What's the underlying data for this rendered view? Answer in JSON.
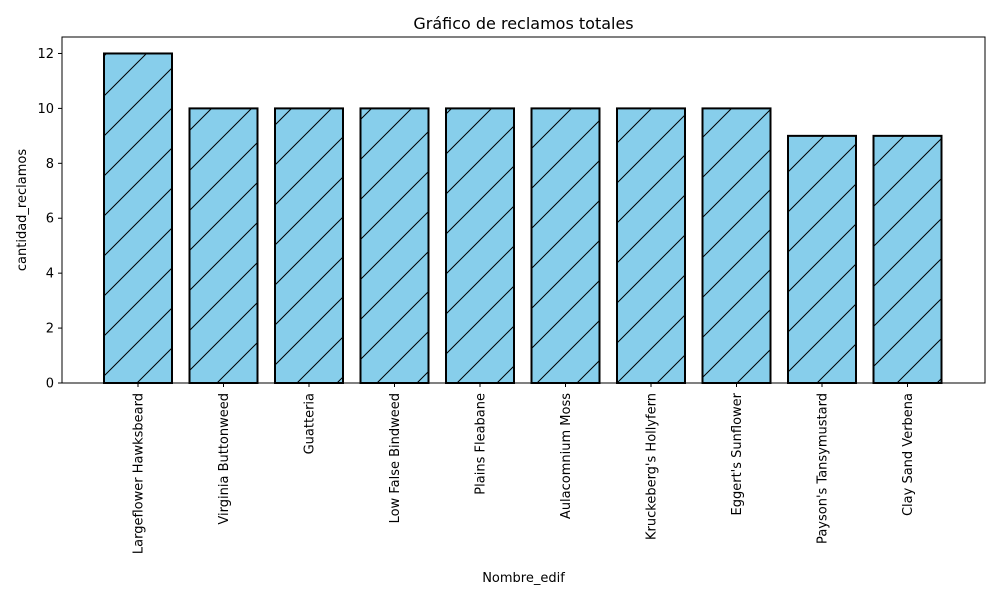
{
  "chart_data": {
    "type": "bar",
    "title": "Gráfico de reclamos totales",
    "xlabel": "Nombre_edif",
    "ylabel": "cantidad_reclamos",
    "categories": [
      "Largeflower Hawksbeard",
      "Virginia Buttonweed",
      "Guatteria",
      "Low False Bindweed",
      "Plains Fleabane",
      "Aulacomnium Moss",
      "Kruckeberg's Hollyfern",
      "Eggert's Sunflower",
      "Payson's Tansymustard",
      "Clay Sand Verbena"
    ],
    "values": [
      12,
      10,
      10,
      10,
      10,
      10,
      10,
      10,
      9,
      9
    ],
    "ylim": [
      0,
      12.6
    ],
    "yticks": [
      0,
      2,
      4,
      6,
      8,
      10,
      12
    ],
    "grid": false,
    "legend": "none",
    "bar_color": "#87ceeb",
    "edge_color": "#000000",
    "hatch": "/"
  }
}
